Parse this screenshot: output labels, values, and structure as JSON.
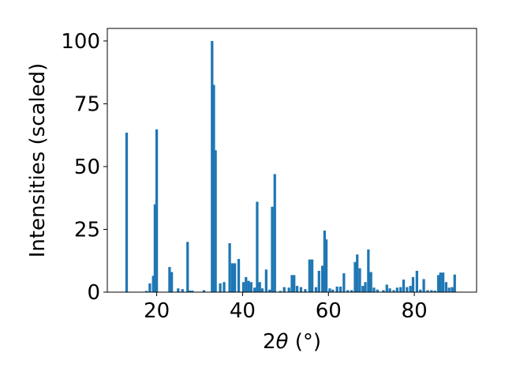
{
  "chart_data": {
    "type": "bar",
    "title": "",
    "xlabel_prefix": "2",
    "xlabel_theta": "θ",
    "xlabel_unit": " (°)",
    "ylabel": "Intensities (scaled)",
    "xlim": [
      8.5,
      94.5
    ],
    "ylim": [
      0,
      105
    ],
    "bar_width": 0.6,
    "grid": false,
    "legend": "none",
    "color": "#1f77b4",
    "xticks": [
      20,
      40,
      60,
      80
    ],
    "yticks": [
      0,
      25,
      50,
      75,
      100
    ],
    "x": [
      13.0,
      17.6,
      18.4,
      19.2,
      19.6,
      20.0,
      23.0,
      23.5,
      25.0,
      26.0,
      27.2,
      27.7,
      28.3,
      31.0,
      32.9,
      33.3,
      33.7,
      34.8,
      35.7,
      37.0,
      37.6,
      38.2,
      39.1,
      40.2,
      40.8,
      41.4,
      42.0,
      42.8,
      43.4,
      44.0,
      44.6,
      45.5,
      46.3,
      46.9,
      47.5,
      48.8,
      49.7,
      50.8,
      51.5,
      52.0,
      52.7,
      53.6,
      54.6,
      55.6,
      56.2,
      57.1,
      57.8,
      58.6,
      59.1,
      59.5,
      60.3,
      61.0,
      62.0,
      62.8,
      63.6,
      64.5,
      65.4,
      66.2,
      66.7,
      67.3,
      68.0,
      68.6,
      69.3,
      69.9,
      70.6,
      71.4,
      72.8,
      73.6,
      74.3,
      75.2,
      76.0,
      76.8,
      77.5,
      78.3,
      79.1,
      79.7,
      80.6,
      81.4,
      82.2,
      83.1,
      84.0,
      84.8,
      85.6,
      86.1,
      86.7,
      87.4,
      88.1,
      88.8,
      89.4
    ],
    "values": [
      63.5,
      0.5,
      3.5,
      6.5,
      35.0,
      64.8,
      10.0,
      8.0,
      1.5,
      1.2,
      20.0,
      0.6,
      0.6,
      0.8,
      100.0,
      82.5,
      56.5,
      3.5,
      4.0,
      19.5,
      11.5,
      11.5,
      13.2,
      4.0,
      6.0,
      4.5,
      4.0,
      1.8,
      36.0,
      4.0,
      1.5,
      9.0,
      1.0,
      34.0,
      47.0,
      0.5,
      2.0,
      1.8,
      6.8,
      6.8,
      2.5,
      2.0,
      1.2,
      13.0,
      13.0,
      2.0,
      8.5,
      10.5,
      24.5,
      21.0,
      1.5,
      1.0,
      2.2,
      2.2,
      7.5,
      0.8,
      0.8,
      12.0,
      15.0,
      9.5,
      2.5,
      4.0,
      17.0,
      8.0,
      1.8,
      1.0,
      0.8,
      3.0,
      1.5,
      0.8,
      1.8,
      2.0,
      5.0,
      2.0,
      2.5,
      6.0,
      8.5,
      1.0,
      5.2,
      0.8,
      0.8,
      0.6,
      6.8,
      7.8,
      7.8,
      4.0,
      1.8,
      2.0,
      7.0
    ]
  }
}
